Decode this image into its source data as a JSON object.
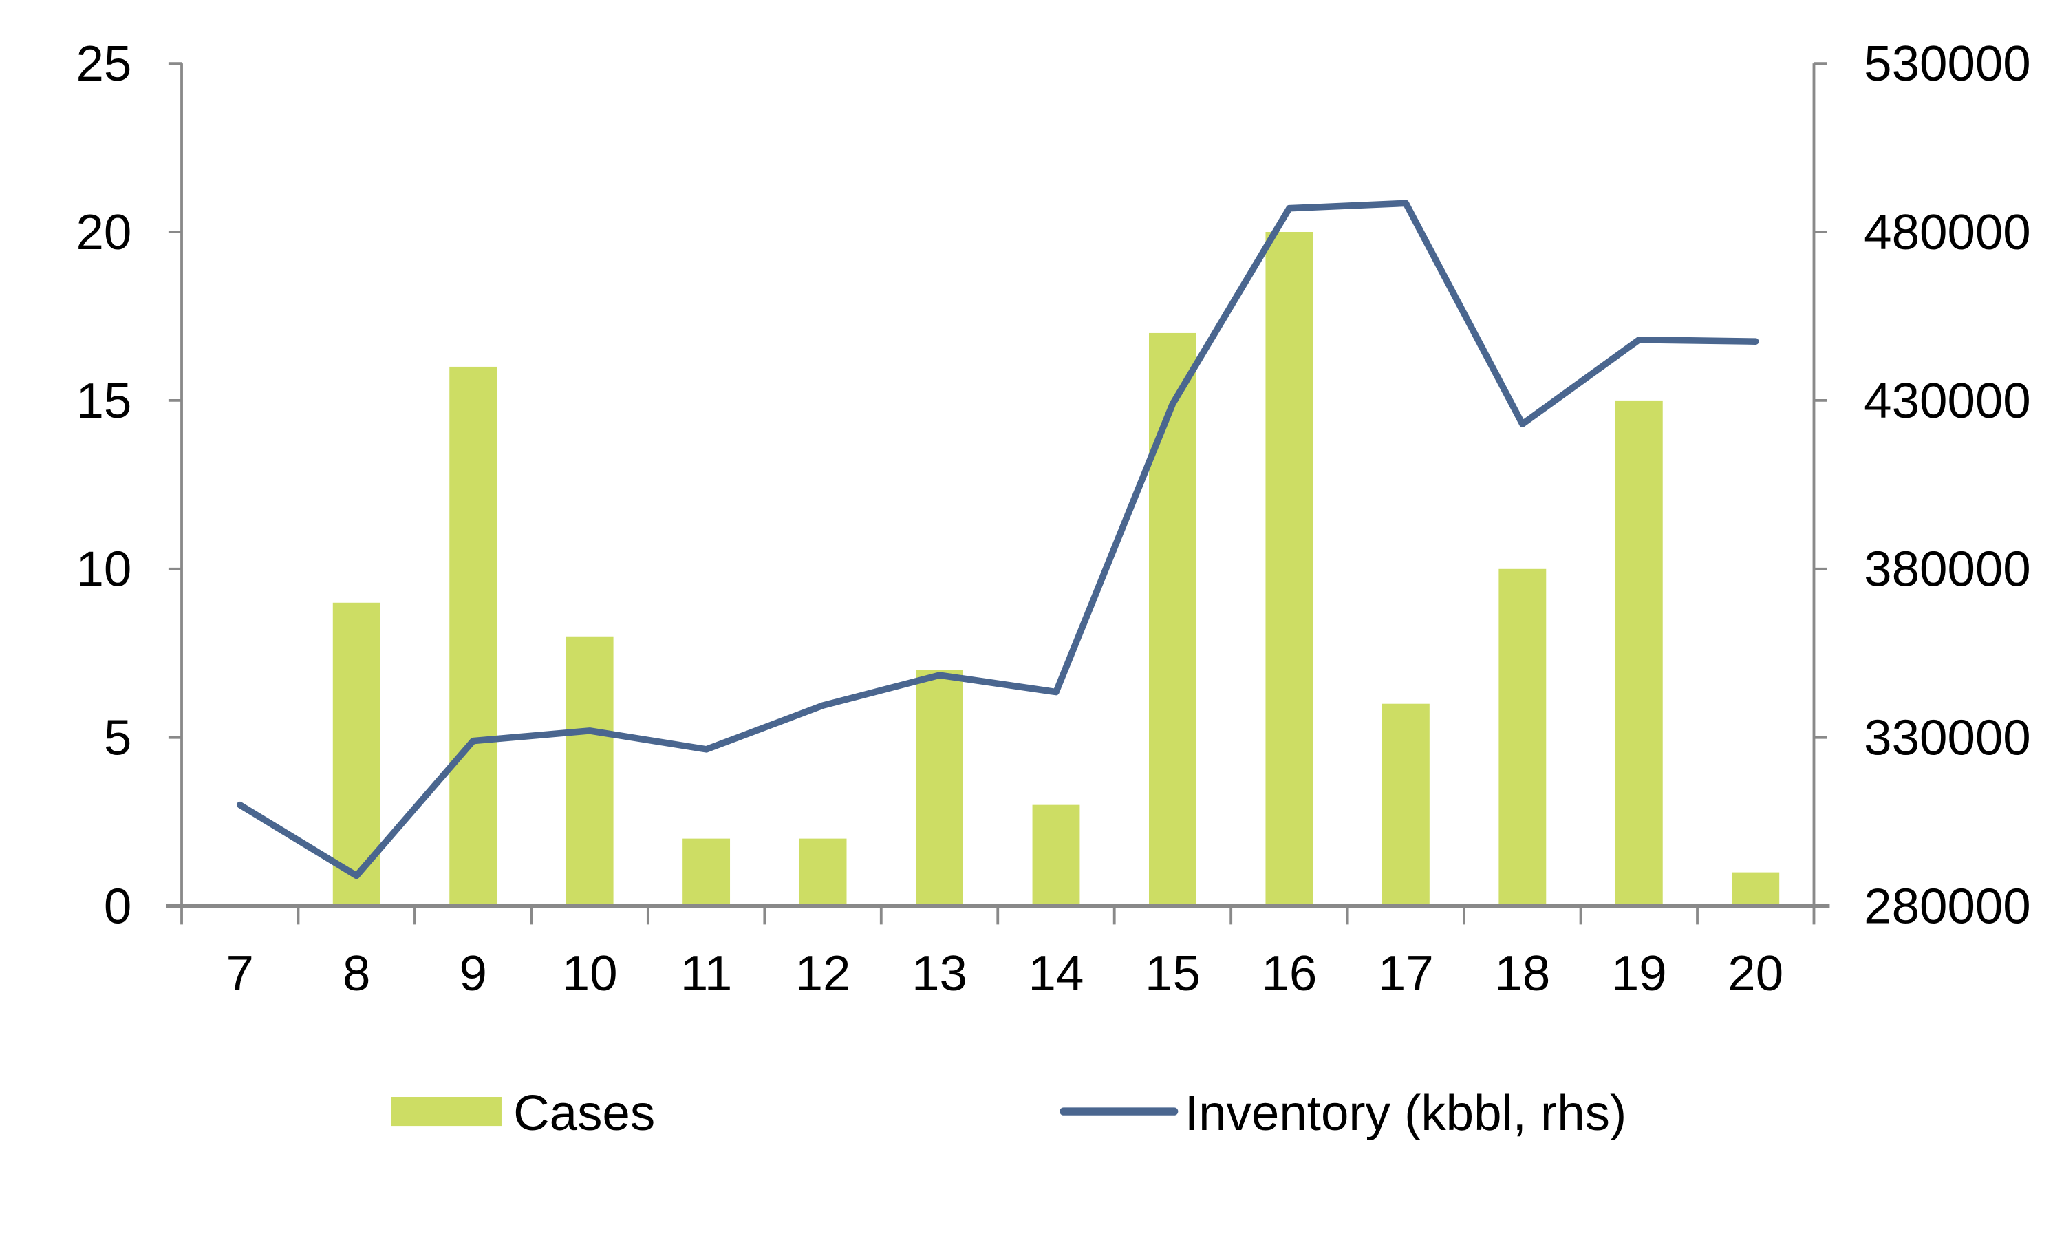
{
  "chart_data": {
    "type": "bar+line",
    "title": "",
    "xlabel": "",
    "categories": [
      "7",
      "8",
      "9",
      "10",
      "11",
      "12",
      "13",
      "14",
      "15",
      "16",
      "17",
      "18",
      "19",
      "20"
    ],
    "series": [
      {
        "name": "Cases",
        "type": "bar",
        "axis": "left",
        "color": "#CDDD64",
        "values": [
          0,
          9,
          16,
          8,
          2,
          2,
          7,
          3,
          17,
          20,
          6,
          10,
          15,
          1
        ]
      },
      {
        "name": "Inventory (kbbl, rhs)",
        "type": "line",
        "axis": "right",
        "color": "#4A668F",
        "values": [
          310000,
          289000,
          329000,
          332000,
          326500,
          339500,
          348500,
          343500,
          429000,
          487000,
          488500,
          423000,
          448000,
          447500
        ]
      }
    ],
    "ylim_left": [
      0,
      25
    ],
    "yticks_left": [
      "0",
      "5",
      "10",
      "15",
      "20",
      "25"
    ],
    "ylim_right": [
      280000,
      530000
    ],
    "yticks_right": [
      "280000",
      "330000",
      "380000",
      "430000",
      "480000",
      "530000"
    ],
    "grid": false,
    "legend_position": "bottom",
    "axis_color": "#898989"
  }
}
